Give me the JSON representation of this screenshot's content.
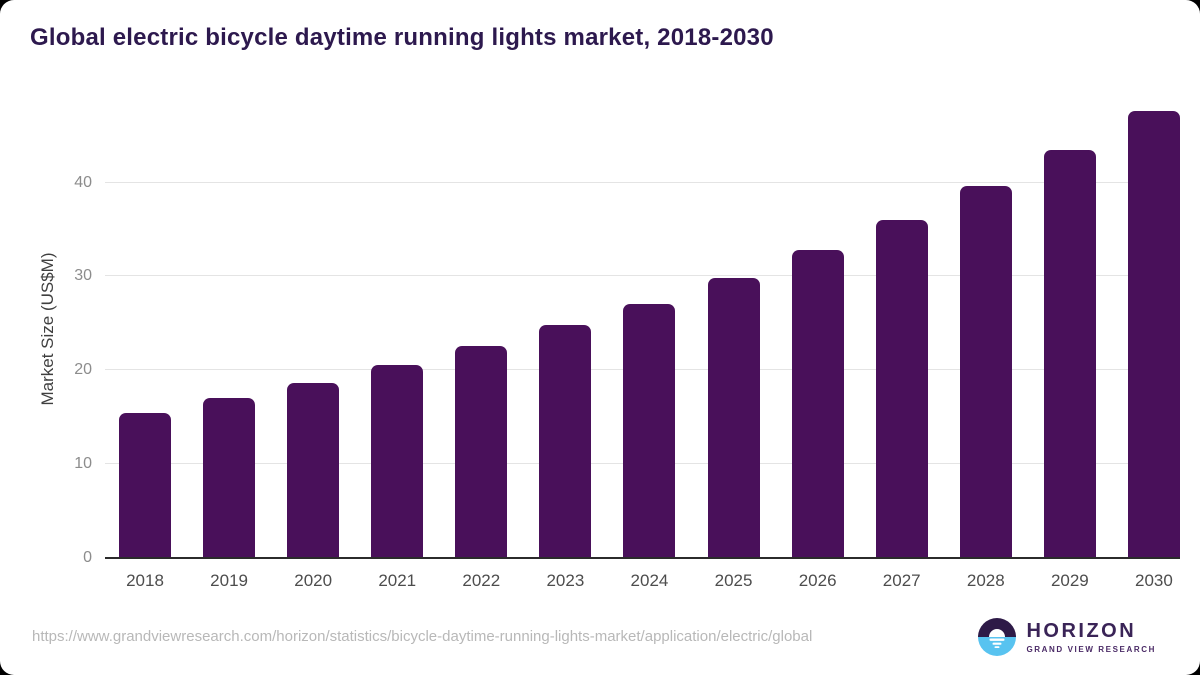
{
  "card": {
    "title": "Global electric bicycle daytime running lights market, 2018-2030"
  },
  "chart_data": {
    "type": "bar",
    "title": "Global electric bicycle daytime running lights market, 2018-2030",
    "categories": [
      "2018",
      "2019",
      "2020",
      "2021",
      "2022",
      "2023",
      "2024",
      "2025",
      "2026",
      "2027",
      "2028",
      "2029",
      "2030"
    ],
    "values": [
      15.5,
      17.1,
      18.7,
      20.6,
      22.6,
      24.8,
      27.1,
      29.8,
      32.8,
      36.0,
      39.6,
      43.5,
      47.6
    ],
    "xlabel": "",
    "ylabel": "Market Size (US$M)",
    "ylim": [
      0,
      48.8
    ],
    "yticks": [
      0,
      10,
      20,
      30,
      40
    ],
    "grid": "horizontal-only",
    "legend": "none",
    "bar_color": "#49105a"
  },
  "footer": {
    "source_url": "https://www.grandviewresearch.com/horizon/statistics/bicycle-daytime-running-lights-market/application/electric/global",
    "logo": {
      "name": "HORIZON",
      "subtitle": "GRAND VIEW RESEARCH",
      "icon": "sun-over-horizon-icon",
      "purple": "#2e1a47",
      "blue": "#58c3f0"
    }
  },
  "colors": {
    "title_text": "#2d194e",
    "bar": "#49105a",
    "gridline": "#e4e4e4",
    "axis_line": "#2b2b2b",
    "y_tick_text": "#8c8c8c",
    "x_tick_text": "#4d4d4d",
    "url_text": "#b8b8b8",
    "background": "#ffffff"
  }
}
